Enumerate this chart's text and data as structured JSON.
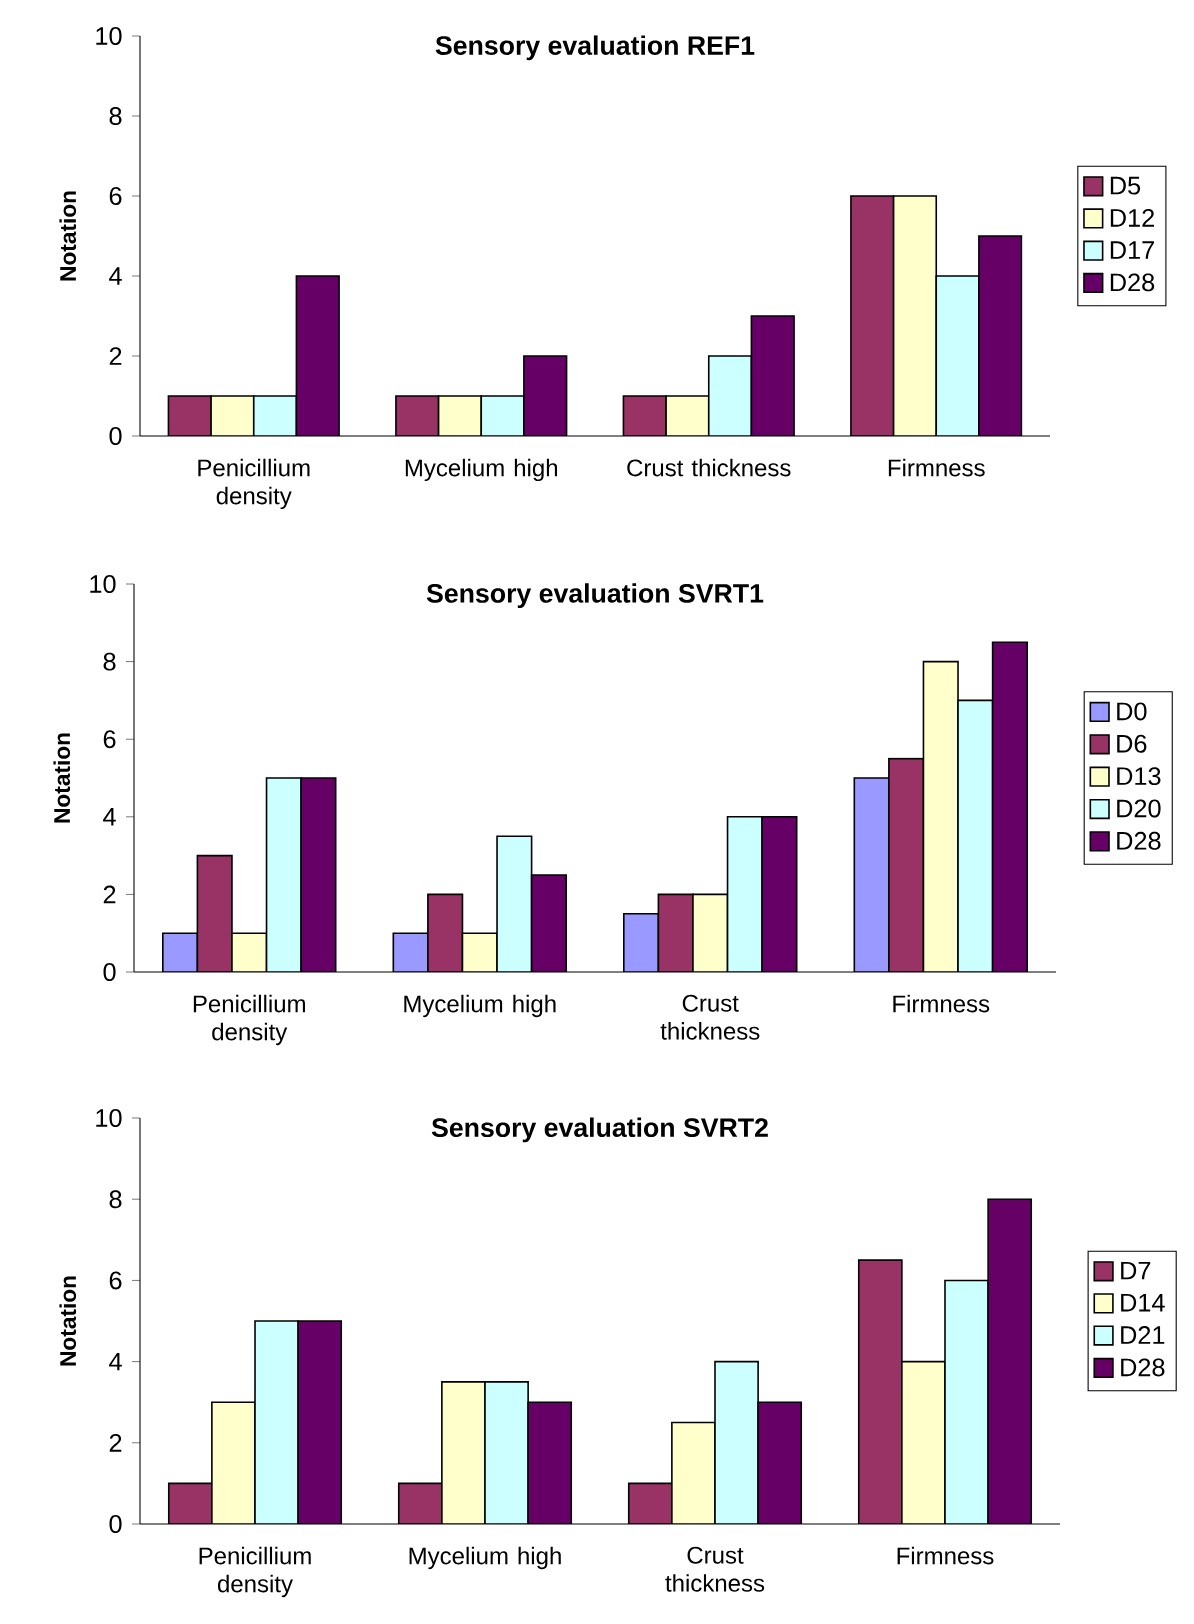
{
  "chart_data": [
    {
      "type": "bar",
      "title": "Sensory evaluation REF1",
      "ylabel": "Notation",
      "categories": [
        "Penicillium density",
        "Mycelium high",
        "Crust thickness",
        "Firmness"
      ],
      "ylim": [
        0,
        10
      ],
      "yticks": [
        0,
        2,
        4,
        6,
        8,
        10
      ],
      "legend": "right",
      "series": [
        {
          "name": "D5",
          "color": "#993366",
          "values": [
            1,
            1,
            1,
            6
          ]
        },
        {
          "name": "D12",
          "color": "#ffffcc",
          "values": [
            1,
            1,
            1,
            6
          ]
        },
        {
          "name": "D17",
          "color": "#ccffff",
          "values": [
            1,
            1,
            2,
            4
          ]
        },
        {
          "name": "D28",
          "color": "#660066",
          "values": [
            4,
            2,
            3,
            5
          ]
        }
      ]
    },
    {
      "type": "bar",
      "title": "Sensory evaluation SVRT1",
      "ylabel": "Notation",
      "categories": [
        "Penicillium density",
        "Mycelium high",
        "Crust thickness",
        "Firmness"
      ],
      "ylim": [
        0,
        10
      ],
      "yticks": [
        0,
        2,
        4,
        6,
        8,
        10
      ],
      "legend": "right",
      "series": [
        {
          "name": "D0",
          "color": "#9999ff",
          "values": [
            1,
            1,
            1.5,
            5
          ]
        },
        {
          "name": "D6",
          "color": "#993366",
          "values": [
            3,
            2,
            2,
            5.5
          ]
        },
        {
          "name": "D13",
          "color": "#ffffcc",
          "values": [
            1,
            1,
            2,
            8
          ]
        },
        {
          "name": "D20",
          "color": "#ccffff",
          "values": [
            5,
            3.5,
            4,
            7
          ]
        },
        {
          "name": "D28",
          "color": "#660066",
          "values": [
            5,
            2.5,
            4,
            8.5
          ]
        }
      ]
    },
    {
      "type": "bar",
      "title": "Sensory evaluation SVRT2",
      "ylabel": "Notation",
      "categories": [
        "Penicillium density",
        "Mycelium high",
        "Crust thickness",
        "Firmness"
      ],
      "ylim": [
        0,
        10
      ],
      "yticks": [
        0,
        2,
        4,
        6,
        8,
        10
      ],
      "legend": "right",
      "series": [
        {
          "name": "D7",
          "color": "#993366",
          "values": [
            1,
            1,
            1,
            6.5
          ]
        },
        {
          "name": "D14",
          "color": "#ffffcc",
          "values": [
            3,
            3.5,
            2.5,
            4
          ]
        },
        {
          "name": "D21",
          "color": "#ccffff",
          "values": [
            5,
            3.5,
            4,
            6
          ]
        },
        {
          "name": "D28",
          "color": "#660066",
          "values": [
            5,
            3,
            3,
            8
          ]
        }
      ]
    }
  ]
}
